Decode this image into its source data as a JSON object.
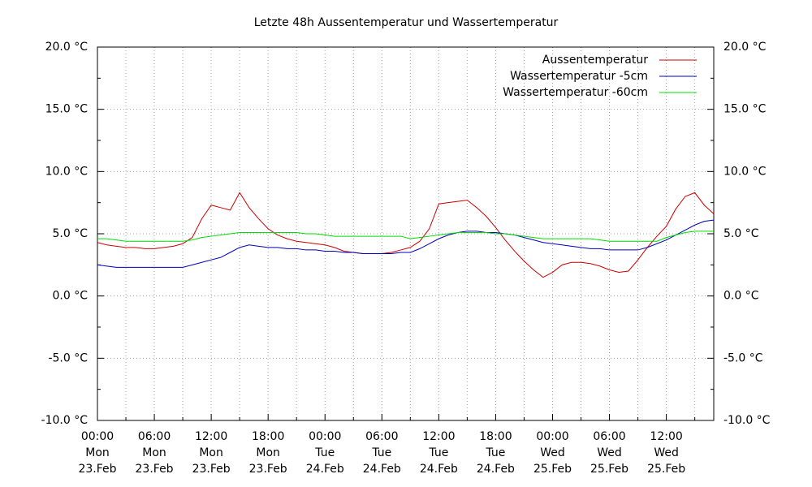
{
  "chart_data": {
    "type": "line",
    "title": "Letzte 48h Aussentemperatur und Wassertemperatur",
    "x": [
      0,
      1,
      2,
      3,
      4,
      5,
      6,
      7,
      8,
      9,
      10,
      11,
      12,
      13,
      14,
      15,
      16,
      17,
      18,
      19,
      20,
      21,
      22,
      23,
      24,
      25,
      26,
      27,
      28,
      29,
      30,
      31,
      32,
      33,
      34,
      35,
      36,
      37,
      38,
      39,
      40,
      41,
      42,
      43,
      44,
      45,
      46,
      47,
      48,
      49,
      50,
      51,
      52,
      53,
      54,
      55,
      56,
      57,
      58,
      59,
      60,
      61,
      62,
      63,
      64,
      65
    ],
    "series": [
      {
        "name": "Aussentemperatur",
        "color": "#cc0000",
        "values": [
          4.3,
          4.1,
          4.0,
          3.9,
          3.9,
          3.8,
          3.8,
          3.9,
          4.0,
          4.2,
          4.7,
          6.2,
          7.3,
          7.1,
          6.9,
          8.3,
          7.1,
          6.2,
          5.4,
          4.9,
          4.6,
          4.4,
          4.3,
          4.2,
          4.1,
          3.9,
          3.6,
          3.5,
          3.4,
          3.4,
          3.4,
          3.5,
          3.7,
          3.9,
          4.4,
          5.4,
          7.4,
          7.5,
          7.6,
          7.7,
          7.1,
          6.4,
          5.5,
          4.5,
          3.6,
          2.8,
          2.1,
          1.5,
          1.9,
          2.5,
          2.7,
          2.7,
          2.6,
          2.4,
          2.1,
          1.9,
          2.0,
          2.9,
          3.9,
          4.8,
          5.6,
          7.0,
          8.0,
          8.3,
          7.3,
          6.6
        ]
      },
      {
        "name": "Wassertemperatur -5cm",
        "color": "#0000bb",
        "values": [
          2.5,
          2.4,
          2.3,
          2.3,
          2.3,
          2.3,
          2.3,
          2.3,
          2.3,
          2.3,
          2.5,
          2.7,
          2.9,
          3.1,
          3.5,
          3.9,
          4.1,
          4.0,
          3.9,
          3.9,
          3.8,
          3.8,
          3.7,
          3.7,
          3.6,
          3.6,
          3.5,
          3.5,
          3.4,
          3.4,
          3.4,
          3.4,
          3.5,
          3.5,
          3.8,
          4.2,
          4.6,
          4.9,
          5.1,
          5.2,
          5.2,
          5.1,
          5.1,
          5.0,
          4.9,
          4.7,
          4.5,
          4.3,
          4.2,
          4.1,
          4.0,
          3.9,
          3.8,
          3.8,
          3.7,
          3.7,
          3.7,
          3.7,
          3.9,
          4.2,
          4.5,
          4.9,
          5.3,
          5.7,
          6.0,
          6.1
        ]
      },
      {
        "name": "Wassertemperatur -60cm",
        "color": "#00dd00",
        "values": [
          4.6,
          4.6,
          4.5,
          4.4,
          4.4,
          4.4,
          4.4,
          4.4,
          4.4,
          4.4,
          4.5,
          4.7,
          4.8,
          4.9,
          5.0,
          5.1,
          5.1,
          5.1,
          5.1,
          5.1,
          5.1,
          5.1,
          5.0,
          5.0,
          4.9,
          4.8,
          4.8,
          4.8,
          4.8,
          4.8,
          4.8,
          4.8,
          4.8,
          4.6,
          4.7,
          4.8,
          4.9,
          5.0,
          5.1,
          5.1,
          5.1,
          5.1,
          5.0,
          5.0,
          4.9,
          4.8,
          4.7,
          4.6,
          4.6,
          4.6,
          4.6,
          4.6,
          4.6,
          4.5,
          4.4,
          4.4,
          4.4,
          4.4,
          4.4,
          4.4,
          4.7,
          4.9,
          5.1,
          5.2,
          5.2,
          5.2
        ]
      }
    ],
    "xlim": [
      0,
      65
    ],
    "xticks": [
      {
        "value": 0,
        "label": [
          "00:00",
          "Mon",
          "23.Feb"
        ]
      },
      {
        "value": 6,
        "label": [
          "06:00",
          "Mon",
          "23.Feb"
        ]
      },
      {
        "value": 12,
        "label": [
          "12:00",
          "Mon",
          "23.Feb"
        ]
      },
      {
        "value": 18,
        "label": [
          "18:00",
          "Mon",
          "23.Feb"
        ]
      },
      {
        "value": 24,
        "label": [
          "00:00",
          "Tue",
          "24.Feb"
        ]
      },
      {
        "value": 30,
        "label": [
          "06:00",
          "Tue",
          "24.Feb"
        ]
      },
      {
        "value": 36,
        "label": [
          "12:00",
          "Tue",
          "24.Feb"
        ]
      },
      {
        "value": 42,
        "label": [
          "18:00",
          "Tue",
          "24.Feb"
        ]
      },
      {
        "value": 48,
        "label": [
          "00:00",
          "Wed",
          "25.Feb"
        ]
      },
      {
        "value": 54,
        "label": [
          "06:00",
          "Wed",
          "25.Feb"
        ]
      },
      {
        "value": 60,
        "label": [
          "12:00",
          "Wed",
          "25.Feb"
        ]
      }
    ],
    "ylim": [
      -10,
      20
    ],
    "yticks": [
      {
        "value": -10,
        "label": "-10.0 °C"
      },
      {
        "value": -5,
        "label": "-5.0 °C"
      },
      {
        "value": 0,
        "label": "0.0 °C"
      },
      {
        "value": 5,
        "label": "5.0 °C"
      },
      {
        "value": 10,
        "label": "10.0 °C"
      },
      {
        "value": 15,
        "label": "15.0 °C"
      },
      {
        "value": 20,
        "label": "20.0 °C"
      }
    ],
    "y2lim": [
      -10,
      20
    ],
    "y2ticks": [
      {
        "value": -10,
        "label": "-10.0 °C"
      },
      {
        "value": -5,
        "label": "-5.0 °C"
      },
      {
        "value": 0,
        "label": "0.0 °C"
      },
      {
        "value": 5,
        "label": "5.0 °C"
      },
      {
        "value": 10,
        "label": "10.0 °C"
      },
      {
        "value": 15,
        "label": "15.0 °C"
      },
      {
        "value": 20,
        "label": "20.0 °C"
      }
    ],
    "grid": true,
    "legend": "top-right"
  }
}
